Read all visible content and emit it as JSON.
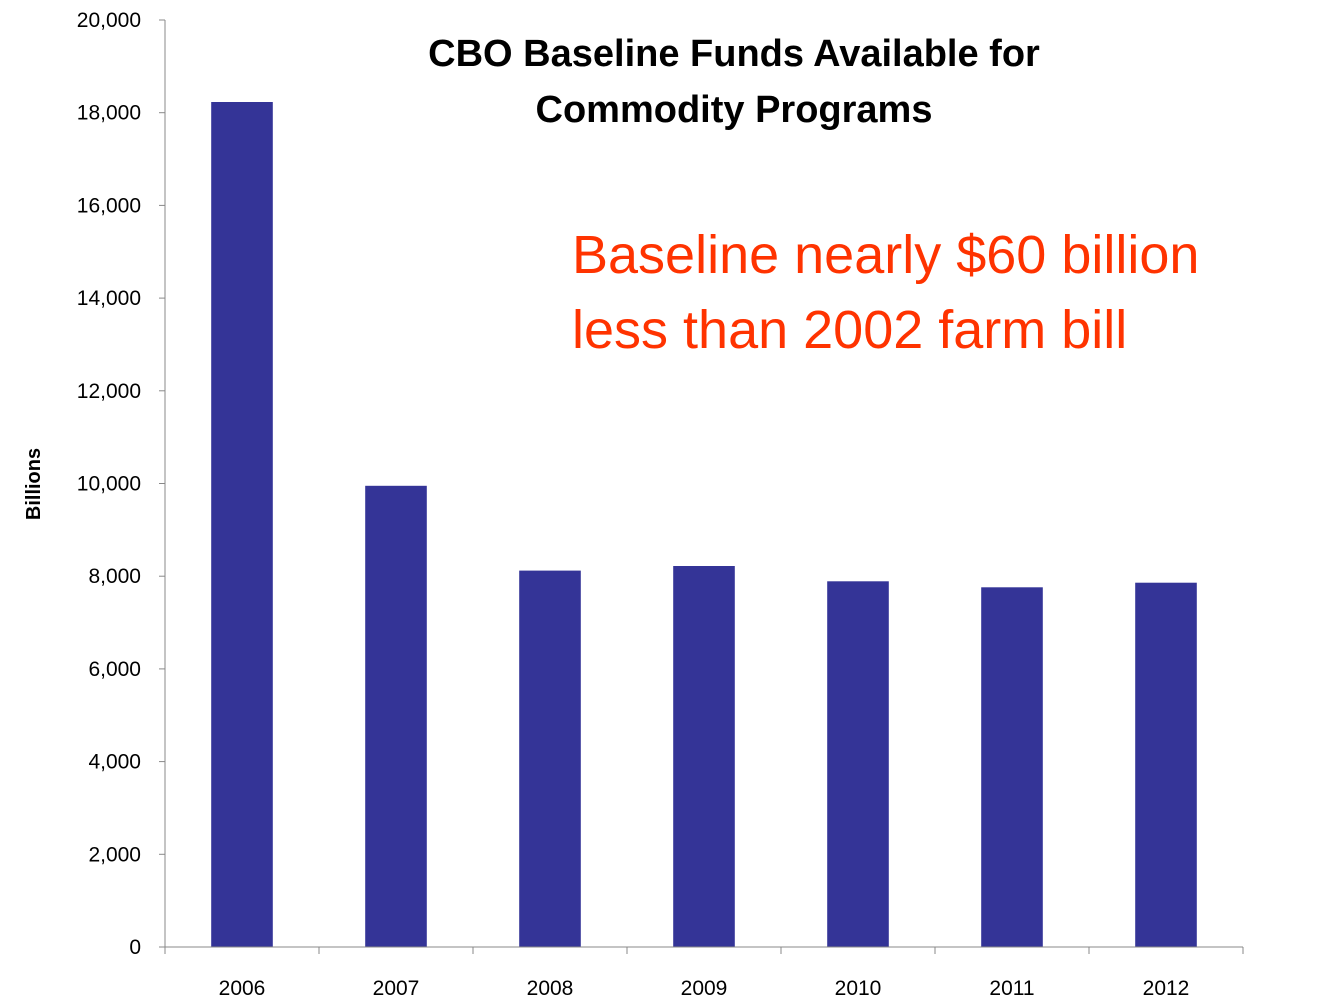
{
  "chart_data": {
    "type": "bar",
    "title": [
      "CBO Baseline Funds Available for",
      "Commodity Programs"
    ],
    "ylabel": "Billions",
    "categories": [
      "2006",
      "2007",
      "2008",
      "2009",
      "2010",
      "2011",
      "2012"
    ],
    "values": [
      18230,
      9950,
      8120,
      8220,
      7890,
      7760,
      7860
    ],
    "ylim": [
      0,
      20000
    ],
    "yticks": [
      0,
      2000,
      4000,
      6000,
      8000,
      10000,
      12000,
      14000,
      16000,
      18000,
      20000
    ],
    "ytick_labels": [
      "0",
      "2,000",
      "4,000",
      "6,000",
      "8,000",
      "10,000",
      "12,000",
      "14,000",
      "16,000",
      "18,000",
      "20,000"
    ],
    "annotation": [
      "Baseline nearly $60 billion",
      "less than 2002 farm bill"
    ],
    "bar_color": "#343497",
    "annotation_color": "#ff3300",
    "grid": false,
    "legend": "none"
  }
}
